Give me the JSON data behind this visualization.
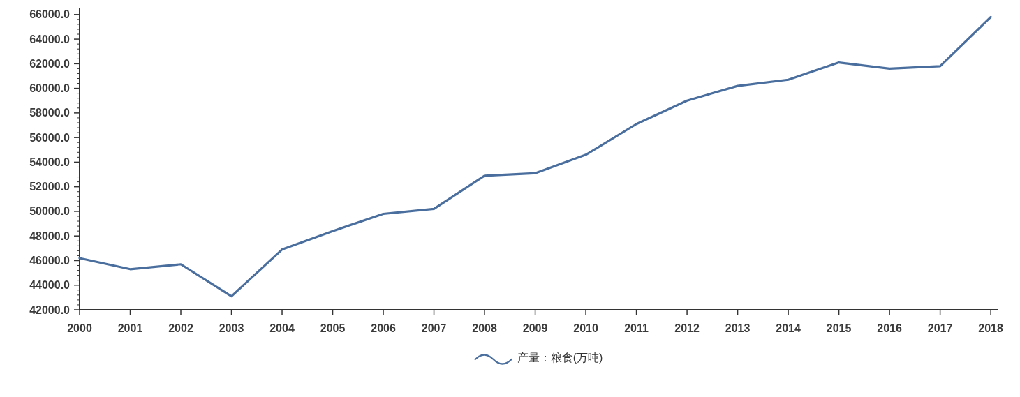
{
  "chart_data": {
    "type": "line",
    "categories": [
      "2000",
      "2001",
      "2002",
      "2003",
      "2004",
      "2005",
      "2006",
      "2007",
      "2008",
      "2009",
      "2010",
      "2011",
      "2012",
      "2013",
      "2014",
      "2015",
      "2016",
      "2017",
      "2018"
    ],
    "series": [
      {
        "name": "产量：粮食(万吨)",
        "color": "#4a6f9e",
        "values": [
          46200,
          45300,
          45700,
          43100,
          46900,
          48400,
          49800,
          50200,
          52900,
          53100,
          54600,
          57100,
          59000,
          60200,
          60700,
          62100,
          61600,
          61800,
          65800
        ]
      }
    ],
    "ylim": [
      42000,
      66500
    ],
    "yticks": [
      {
        "value": 42000,
        "label": "42000.0"
      },
      {
        "value": 44000,
        "label": "44000.0"
      },
      {
        "value": 46000,
        "label": "46000.0"
      },
      {
        "value": 48000,
        "label": "48000.0"
      },
      {
        "value": 50000,
        "label": "50000.0"
      },
      {
        "value": 52000,
        "label": "52000.0"
      },
      {
        "value": 54000,
        "label": "54000.0"
      },
      {
        "value": 56000,
        "label": "56000.0"
      },
      {
        "value": 58000,
        "label": "58000.0"
      },
      {
        "value": 60000,
        "label": "60000.0"
      },
      {
        "value": 62000,
        "label": "62000.0"
      },
      {
        "value": 64000,
        "label": "64000.0"
      },
      {
        "value": 66000,
        "label": "66000.0"
      }
    ],
    "legend": "bottom",
    "line_style": "solid"
  }
}
